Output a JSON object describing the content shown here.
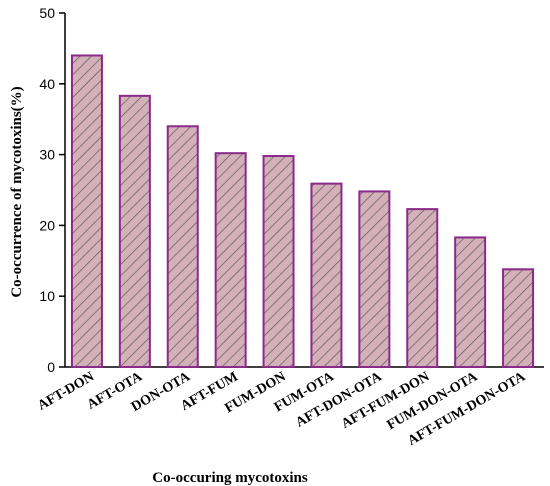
{
  "chart_data": {
    "type": "bar",
    "title": "",
    "xlabel": "Co-occuring mycotoxins",
    "ylabel": "Co-occurrence of mycotoxins(%)",
    "ylim": [
      0,
      50
    ],
    "yticks": [
      "0",
      "10",
      "20",
      "30",
      "40",
      "50"
    ],
    "categories": [
      "AFT-DON",
      "AFT-OTA",
      "DON-OTA",
      "AFT-FUM",
      "FUM-DON",
      "FUM-OTA",
      "AFT-DON-OTA",
      "AFT-FUM-DON",
      "FUM-DON-OTA",
      "AFT-FUM-DON-OTA"
    ],
    "values": [
      44.0,
      38.3,
      34.0,
      30.2,
      29.8,
      25.9,
      24.8,
      22.3,
      18.3,
      13.8
    ],
    "grid": false,
    "legend": "none",
    "bar_fill": "#d4b0b8",
    "bar_stroke": "#8a2a8a",
    "hatch_color": "#555555"
  }
}
